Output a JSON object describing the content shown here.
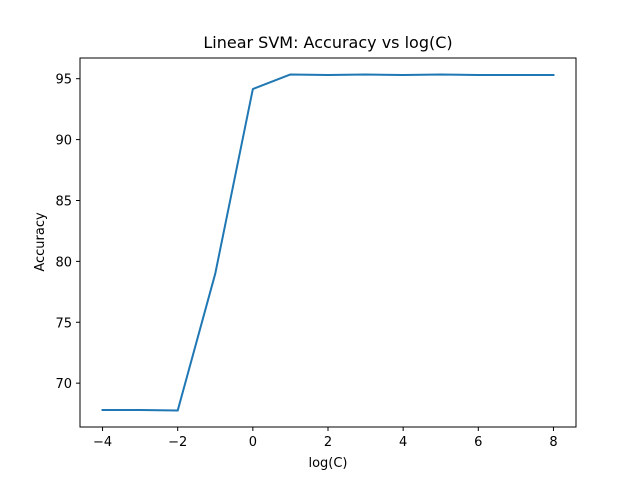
{
  "chart_data": {
    "type": "line",
    "title": "Linear SVM: Accuracy vs log(C)",
    "xlabel": "log(C)",
    "ylabel": "Accuracy",
    "xlim": [
      -4.6,
      8.6
    ],
    "ylim": [
      66.4,
      96.7
    ],
    "grid": false,
    "x_ticks": [
      -4,
      -2,
      0,
      2,
      4,
      6,
      8
    ],
    "x_tick_labels": [
      "−4",
      "−2",
      "0",
      "2",
      "4",
      "6",
      "8"
    ],
    "y_ticks": [
      70,
      75,
      80,
      85,
      90,
      95
    ],
    "y_tick_labels": [
      "70",
      "75",
      "80",
      "85",
      "90",
      "95"
    ],
    "series": [
      {
        "color": "#1f77b4",
        "x": [
          -4,
          -3,
          -2,
          -1,
          0,
          1,
          2,
          3,
          4,
          5,
          6,
          7,
          8
        ],
        "y": [
          67.8,
          67.8,
          67.75,
          79.0,
          94.15,
          95.35,
          95.3,
          95.35,
          95.3,
          95.35,
          95.3,
          95.3,
          95.3
        ]
      }
    ]
  }
}
